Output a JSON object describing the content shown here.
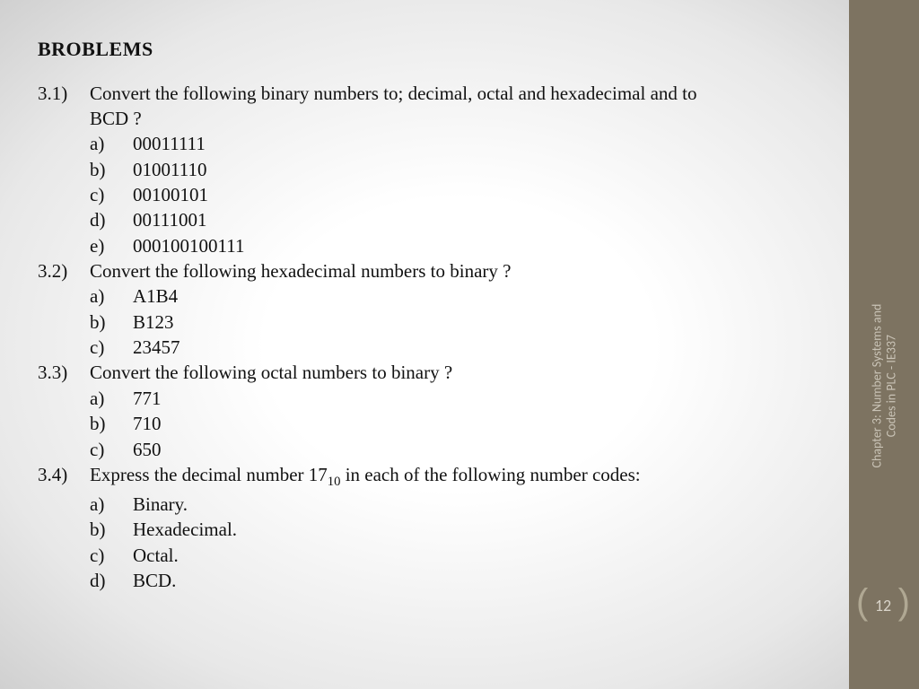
{
  "title": "BROBLEMS",
  "problems": [
    {
      "num": "3.1)",
      "text": "Convert the following binary numbers to; decimal, octal and hexadecimal and to",
      "text2": "BCD ?",
      "items": [
        {
          "label": "a)",
          "val": "00011111"
        },
        {
          "label": "b)",
          "val": "01001110"
        },
        {
          "label": "c)",
          "val": "00100101"
        },
        {
          "label": "d)",
          "val": "00111001"
        },
        {
          "label": "e)",
          "val": "000100100111"
        }
      ]
    },
    {
      "num": "3.2)",
      "text": "Convert the following hexadecimal numbers to binary ?",
      "items": [
        {
          "label": "a)",
          "val": "A1B4"
        },
        {
          "label": "b)",
          "val": "B123"
        },
        {
          "label": "c)",
          "val": "23457"
        }
      ]
    },
    {
      "num": "3.3)",
      "text": "Convert the following octal numbers to binary ?",
      "items": [
        {
          "label": "a)",
          "val": "771"
        },
        {
          "label": "b)",
          "val": "710"
        },
        {
          "label": "c)",
          "val": "650"
        }
      ]
    },
    {
      "num": "3.4)",
      "text_pre": "Express the decimal number 17",
      "text_sub": "10",
      "text_post": " in each of the following number codes:",
      "items": [
        {
          "label": "a)",
          "val": "Binary."
        },
        {
          "label": "b)",
          "val": "Hexadecimal."
        },
        {
          "label": "c)",
          "val": "Octal."
        },
        {
          "label": "d)",
          "val": "BCD."
        }
      ]
    }
  ],
  "sidebar": {
    "line1": "Chapter 3: Number Systems and",
    "line2": "Codes in PLC - IE337",
    "pagenum": "12"
  },
  "colors": {
    "sidebar_bg": "#7d7361",
    "sidebar_text": "#c9c3b6",
    "body_text": "#111111"
  }
}
